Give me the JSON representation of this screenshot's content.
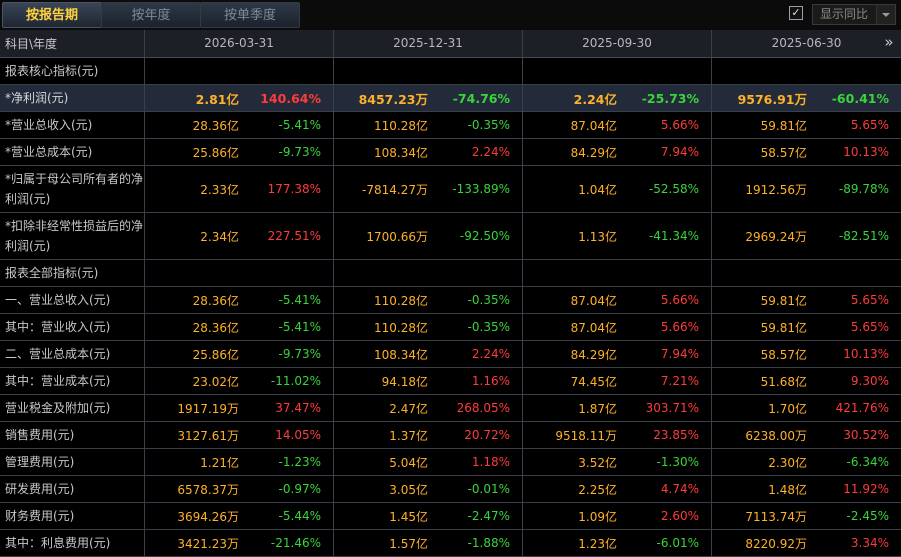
{
  "toolbar": {
    "tabs": [
      {
        "label": "按报告期",
        "active": true
      },
      {
        "label": "按年度",
        "active": false
      },
      {
        "label": "按单季度",
        "active": false
      }
    ],
    "yoy_checkbox_checked": true,
    "yoy_label": "显示同比"
  },
  "table": {
    "header_label": "科目\\年度",
    "periods": [
      "2026-03-31",
      "2025-12-31",
      "2025-09-30",
      "2025-06-30"
    ],
    "rows": [
      {
        "label": "报表核心指标(元)",
        "section": true
      },
      {
        "label": "*净利润(元)",
        "highlight": true,
        "cells": [
          [
            "2.81亿",
            "140.64%"
          ],
          [
            "8457.23万",
            "-74.76%"
          ],
          [
            "2.24亿",
            "-25.73%"
          ],
          [
            "9576.91万",
            "-60.41%"
          ]
        ]
      },
      {
        "label": "*营业总收入(元)",
        "cells": [
          [
            "28.36亿",
            "-5.41%"
          ],
          [
            "110.28亿",
            "-0.35%"
          ],
          [
            "87.04亿",
            "5.66%"
          ],
          [
            "59.81亿",
            "5.65%"
          ]
        ]
      },
      {
        "label": "*营业总成本(元)",
        "cells": [
          [
            "25.86亿",
            "-9.73%"
          ],
          [
            "108.34亿",
            "2.24%"
          ],
          [
            "84.29亿",
            "7.94%"
          ],
          [
            "58.57亿",
            "10.13%"
          ]
        ]
      },
      {
        "label": "*归属于母公司所有者的净利润(元)",
        "tall": true,
        "cells": [
          [
            "2.33亿",
            "177.38%"
          ],
          [
            "-7814.27万",
            "-133.89%"
          ],
          [
            "1.04亿",
            "-52.58%"
          ],
          [
            "1912.56万",
            "-89.78%"
          ]
        ]
      },
      {
        "label": "*扣除非经常性损益后的净利润(元)",
        "tall": true,
        "cells": [
          [
            "2.34亿",
            "227.51%"
          ],
          [
            "1700.66万",
            "-92.50%"
          ],
          [
            "1.13亿",
            "-41.34%"
          ],
          [
            "2969.24万",
            "-82.51%"
          ]
        ]
      },
      {
        "label": "报表全部指标(元)",
        "section": true
      },
      {
        "label": "一、营业总收入(元)",
        "cells": [
          [
            "28.36亿",
            "-5.41%"
          ],
          [
            "110.28亿",
            "-0.35%"
          ],
          [
            "87.04亿",
            "5.66%"
          ],
          [
            "59.81亿",
            "5.65%"
          ]
        ]
      },
      {
        "label": "其中：营业收入(元)",
        "cells": [
          [
            "28.36亿",
            "-5.41%"
          ],
          [
            "110.28亿",
            "-0.35%"
          ],
          [
            "87.04亿",
            "5.66%"
          ],
          [
            "59.81亿",
            "5.65%"
          ]
        ]
      },
      {
        "label": "二、营业总成本(元)",
        "cells": [
          [
            "25.86亿",
            "-9.73%"
          ],
          [
            "108.34亿",
            "2.24%"
          ],
          [
            "84.29亿",
            "7.94%"
          ],
          [
            "58.57亿",
            "10.13%"
          ]
        ]
      },
      {
        "label": "其中：营业成本(元)",
        "cells": [
          [
            "23.02亿",
            "-11.02%"
          ],
          [
            "94.18亿",
            "1.16%"
          ],
          [
            "74.45亿",
            "7.21%"
          ],
          [
            "51.68亿",
            "9.30%"
          ]
        ]
      },
      {
        "label": "营业税金及附加(元)",
        "cells": [
          [
            "1917.19万",
            "37.47%"
          ],
          [
            "2.47亿",
            "268.05%"
          ],
          [
            "1.87亿",
            "303.71%"
          ],
          [
            "1.70亿",
            "421.76%"
          ]
        ]
      },
      {
        "label": "销售费用(元)",
        "cells": [
          [
            "3127.61万",
            "14.05%"
          ],
          [
            "1.37亿",
            "20.72%"
          ],
          [
            "9518.11万",
            "23.85%"
          ],
          [
            "6238.00万",
            "30.52%"
          ]
        ]
      },
      {
        "label": "管理费用(元)",
        "cells": [
          [
            "1.21亿",
            "-1.23%"
          ],
          [
            "5.04亿",
            "1.18%"
          ],
          [
            "3.52亿",
            "-1.30%"
          ],
          [
            "2.30亿",
            "-6.34%"
          ]
        ]
      },
      {
        "label": "研发费用(元)",
        "cells": [
          [
            "6578.37万",
            "-0.97%"
          ],
          [
            "3.05亿",
            "-0.01%"
          ],
          [
            "2.25亿",
            "4.74%"
          ],
          [
            "1.48亿",
            "11.92%"
          ]
        ]
      },
      {
        "label": "财务费用(元)",
        "cells": [
          [
            "3694.26万",
            "-5.44%"
          ],
          [
            "1.45亿",
            "-2.47%"
          ],
          [
            "1.09亿",
            "2.60%"
          ],
          [
            "7113.74万",
            "-2.45%"
          ]
        ]
      },
      {
        "label": "其中：利息费用(元)",
        "cells": [
          [
            "3421.23万",
            "-21.46%"
          ],
          [
            "1.57亿",
            "-1.88%"
          ],
          [
            "1.23亿",
            "-6.01%"
          ],
          [
            "8220.92万",
            "3.34%"
          ]
        ]
      }
    ]
  },
  "colors": {
    "value": "#ffb128",
    "increase": "#ff3b3b",
    "decrease": "#39d43c",
    "active_tab": "#ffd23c",
    "highlight_row": "#232a3a"
  },
  "icons": {
    "checkbox": "check-icon",
    "dropdown": "chevron-down-icon",
    "expand": "double-chevron-right-icon"
  }
}
